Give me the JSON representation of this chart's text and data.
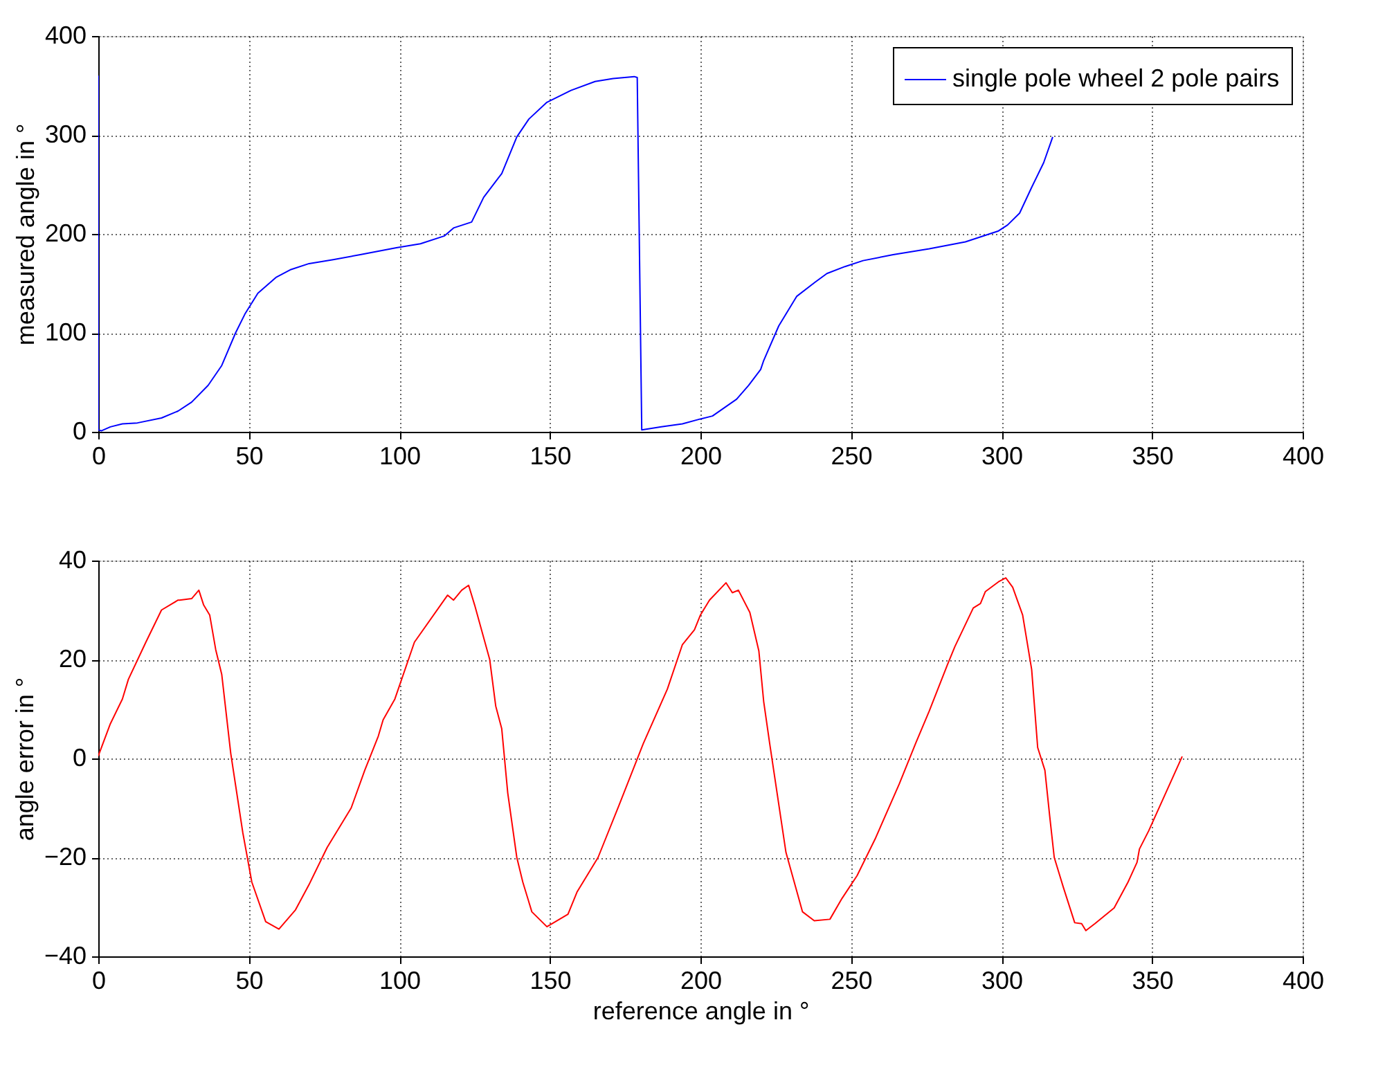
{
  "chart_data": [
    {
      "type": "line",
      "ylabel": "measured angle in °",
      "xlim": [
        0,
        400
      ],
      "xticks": [
        0,
        50,
        100,
        150,
        200,
        250,
        300,
        350,
        400
      ],
      "ylim": [
        0,
        400
      ],
      "yticks": [
        0,
        100,
        200,
        300,
        400
      ],
      "grid": true,
      "legend": "top right",
      "marker": "none",
      "line_style": "solid",
      "series": [
        {
          "name": "single pole wheel 2 pole pairs",
          "color": "#0000ff",
          "x": [
            0,
            0,
            1,
            4,
            8,
            13,
            21,
            26.5,
            31,
            36.5,
            41,
            45.6,
            48.7,
            53,
            59,
            64,
            70,
            78,
            87,
            99,
            107,
            115,
            118,
            124,
            128,
            134,
            139,
            143,
            149,
            157,
            165,
            171,
            178,
            179,
            180.5,
            187,
            194,
            200,
            204,
            212,
            216,
            220,
            221,
            226,
            232,
            238,
            242,
            248,
            254,
            264,
            276,
            288,
            299,
            302,
            306,
            310,
            314,
            317
          ],
          "values": [
            360,
            2,
            1,
            5,
            8,
            9,
            14,
            21,
            30,
            47,
            67,
            100,
            119,
            140,
            156,
            164,
            170,
            174,
            179,
            186,
            190,
            198,
            206,
            212,
            237,
            261,
            298,
            316,
            333,
            345,
            354,
            357,
            359,
            358,
            2,
            5,
            8,
            13,
            16,
            33,
            47,
            63,
            72,
            107,
            137,
            151,
            160,
            167,
            173,
            179,
            185,
            192,
            203,
            209,
            221,
            247,
            272,
            298
          ]
        }
      ]
    },
    {
      "type": "line",
      "xlabel": "reference angle in °",
      "ylabel": "angle error in °",
      "xlim": [
        0,
        400
      ],
      "xticks": [
        0,
        50,
        100,
        150,
        200,
        250,
        300,
        350,
        400
      ],
      "ylim": [
        -40,
        40
      ],
      "yticks": [
        -40,
        -20,
        0,
        20,
        40
      ],
      "grid": true,
      "marker": "none",
      "line_style": "solid",
      "series": [
        {
          "color": "#ff0000",
          "x": [
            0,
            4,
            8,
            10,
            15.8,
            21,
            26.5,
            27,
            31,
            33.4,
            35,
            37,
            39,
            41,
            44,
            48,
            51,
            55.6,
            60,
            65.5,
            70,
            76,
            84,
            88.5,
            93,
            94.6,
            98.5,
            105,
            116,
            118,
            120.7,
            123,
            125,
            130,
            132,
            134,
            136,
            139,
            141,
            144,
            149,
            156,
            159,
            166,
            173,
            181,
            189,
            194,
            198,
            200,
            203,
            208.5,
            210.6,
            212.6,
            216.4,
            219.4,
            221,
            223,
            228.4,
            233.9,
            237.8,
            243,
            247,
            252,
            258,
            266,
            271.5,
            276,
            282,
            284.5,
            290.6,
            293,
            294.6,
            299,
            301.4,
            303.7,
            307,
            310,
            312,
            314.4,
            316,
            317.5,
            320.5,
            324.3,
            326.6,
            328,
            331,
            337.4,
            342,
            345,
            345.8,
            348.9,
            360
          ],
          "values": [
            0.5,
            7,
            12,
            16,
            23.5,
            30,
            32,
            32,
            32.3,
            34,
            31,
            29,
            22,
            17,
            1,
            -15,
            -25,
            -33,
            -34.5,
            -30.6,
            -25.5,
            -18,
            -10,
            -2.4,
            4.5,
            7.8,
            12,
            23.5,
            33,
            32,
            34,
            35,
            31,
            20,
            10.6,
            6,
            -7,
            -20,
            -25,
            -31,
            -34,
            -31.5,
            -27,
            -20,
            -9.4,
            3,
            14,
            23,
            26,
            29,
            32,
            35.5,
            33.5,
            34,
            29.5,
            21.7,
            11.5,
            3,
            -19,
            -31,
            -32.8,
            -32.5,
            -28.3,
            -23.7,
            -16.3,
            -5.2,
            3.1,
            9.6,
            18.9,
            22.6,
            30.4,
            31.3,
            33.7,
            35.7,
            36.5,
            34.6,
            29,
            18,
            2.2,
            -2.4,
            -11.7,
            -20,
            -26,
            -33.2,
            -33.4,
            -34.8,
            -33.4,
            -30.2,
            -25,
            -21,
            -18.3,
            -14.6,
            0.4
          ]
        }
      ]
    }
  ]
}
